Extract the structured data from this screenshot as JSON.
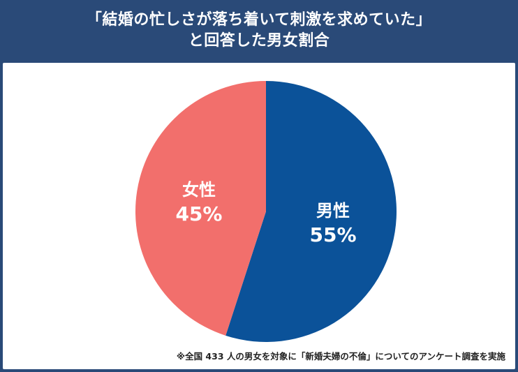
{
  "header": {
    "title_line1": "「結婚の忙しさが落ち着いて刺激を求めていた」",
    "title_line2": "と回答した男女割合"
  },
  "chart_data": {
    "type": "pie",
    "categories": [
      "男性",
      "女性"
    ],
    "values": [
      55,
      45
    ],
    "value_labels": [
      "55%",
      "45%"
    ],
    "colors": [
      "#0b5299",
      "#f26f6c"
    ],
    "title": "「結婚の忙しさが落ち着いて刺激を求めていた」と回答した男女割合",
    "start_angle": "12 o'clock",
    "direction": "clockwise"
  },
  "footnote": "※全国 433 人の男女を対象に「新婚夫婦の不倫」についてのアンケート調査を実施",
  "colors": {
    "header_bg": "#2a4a78",
    "panel_bg": "#ffffff"
  }
}
